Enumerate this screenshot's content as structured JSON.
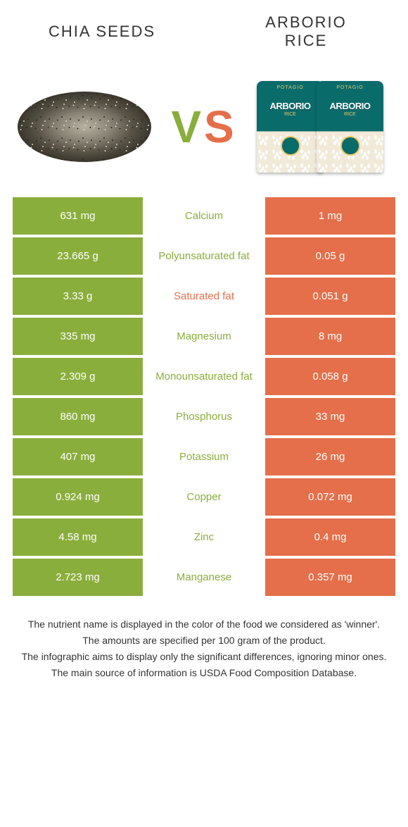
{
  "colors": {
    "green": "#8aae3b",
    "orange": "#e46f4a"
  },
  "header": {
    "left_title": "Chia seeds",
    "right_title_line1": "Arborio",
    "right_title_line2": "rice",
    "vs_v": "V",
    "vs_s": "S",
    "arborio_brand": "ARBORIO",
    "arborio_arch": "POTAGIO",
    "arborio_sub": "RICE"
  },
  "rows": [
    {
      "nutrient": "Calcium",
      "left": "631 mg",
      "right": "1 mg",
      "winner": "left"
    },
    {
      "nutrient": "Polyunsaturated fat",
      "left": "23.665 g",
      "right": "0.05 g",
      "winner": "left"
    },
    {
      "nutrient": "Saturated fat",
      "left": "3.33 g",
      "right": "0.051 g",
      "winner": "right"
    },
    {
      "nutrient": "Magnesium",
      "left": "335 mg",
      "right": "8 mg",
      "winner": "left"
    },
    {
      "nutrient": "Monounsaturated fat",
      "left": "2.309 g",
      "right": "0.058 g",
      "winner": "left"
    },
    {
      "nutrient": "Phosphorus",
      "left": "860 mg",
      "right": "33 mg",
      "winner": "left"
    },
    {
      "nutrient": "Potassium",
      "left": "407 mg",
      "right": "26 mg",
      "winner": "left"
    },
    {
      "nutrient": "Copper",
      "left": "0.924 mg",
      "right": "0.072 mg",
      "winner": "left"
    },
    {
      "nutrient": "Zinc",
      "left": "4.58 mg",
      "right": "0.4 mg",
      "winner": "left"
    },
    {
      "nutrient": "Manganese",
      "left": "2.723 mg",
      "right": "0.357 mg",
      "winner": "left"
    }
  ],
  "footnotes": [
    "The nutrient name is displayed in the color of the food we considered as 'winner'.",
    "The amounts are specified per 100 gram of the product.",
    "The infographic aims to display only the significant differences, ignoring minor ones.",
    "The main source of information is USDA Food Composition Database."
  ]
}
